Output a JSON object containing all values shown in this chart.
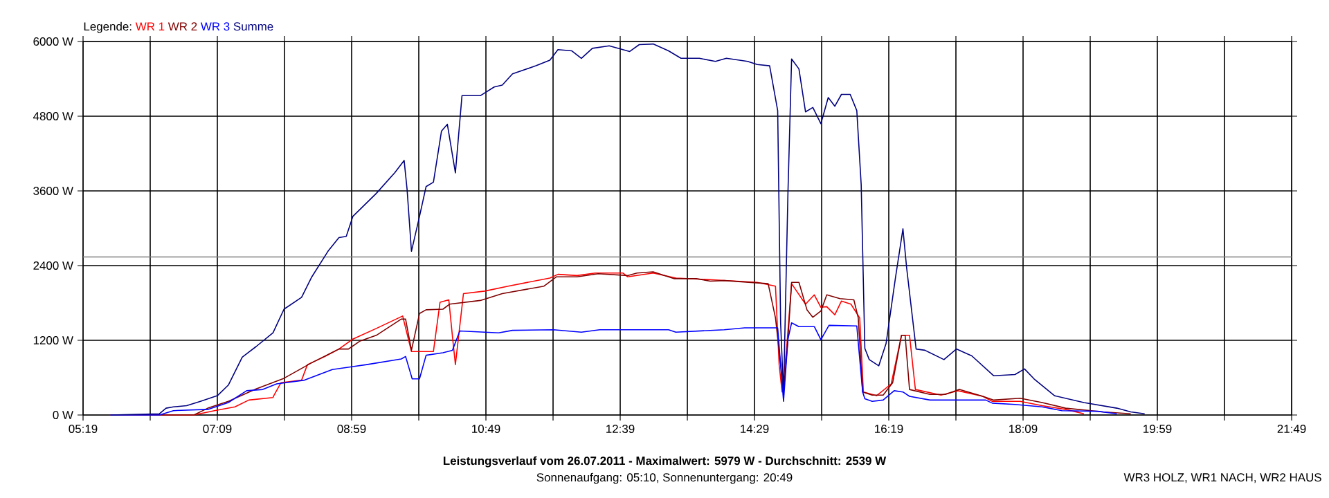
{
  "chart_data": {
    "type": "line",
    "title": "Leistungsverlauf vom 26.07.2011 - Maximalwert: 5979 W - Durchschnitt: 2539 W",
    "subtitle": "Sonnenaufgang: 05:10, Sonnenuntergang: 20:49",
    "annotations": [
      "WR3 HOLZ, WR1 NACH, WR2 HAUS"
    ],
    "legend_title": "Legende:",
    "legend": "top left",
    "grid": true,
    "xlim": [
      5.3167,
      21.8167
    ],
    "ylim": [
      0,
      6000
    ],
    "xticks": [
      {
        "value": 5.3167,
        "label": "05:19"
      },
      {
        "value": 6.2333,
        "label": null
      },
      {
        "value": 7.15,
        "label": "07:09"
      },
      {
        "value": 8.0667,
        "label": null
      },
      {
        "value": 8.9833,
        "label": "08:59"
      },
      {
        "value": 9.9,
        "label": null
      },
      {
        "value": 10.8167,
        "label": "10:49"
      },
      {
        "value": 11.7333,
        "label": null
      },
      {
        "value": 12.65,
        "label": "12:39"
      },
      {
        "value": 13.5667,
        "label": null
      },
      {
        "value": 14.4833,
        "label": "14:29"
      },
      {
        "value": 15.4,
        "label": null
      },
      {
        "value": 16.3167,
        "label": "16:19"
      },
      {
        "value": 17.2333,
        "label": null
      },
      {
        "value": 18.15,
        "label": "18:09"
      },
      {
        "value": 19.0667,
        "label": null
      },
      {
        "value": 19.9833,
        "label": "19:59"
      },
      {
        "value": 20.9,
        "label": null
      },
      {
        "value": 21.8167,
        "label": "21:49"
      }
    ],
    "yticks": [
      {
        "value": 0,
        "label": "0 W"
      },
      {
        "value": 1200,
        "label": "1200 W"
      },
      {
        "value": 2400,
        "label": "2400 W"
      },
      {
        "value": 3600,
        "label": "3600 W"
      },
      {
        "value": 4800,
        "label": "4800 W"
      },
      {
        "value": 6000,
        "label": "6000 W"
      }
    ],
    "ref_lines": [
      {
        "axis": "y",
        "value": 2539,
        "color": "#808080"
      }
    ],
    "series": [
      {
        "name": "WR 1",
        "color": "#ff0000",
        "x": [
          5.69,
          6.83,
          7.11,
          7.39,
          7.58,
          7.91,
          7.92,
          8.02,
          8.3,
          8.38,
          8.62,
          8.81,
          9.0,
          9.32,
          9.68,
          9.8,
          10.1,
          10.19,
          10.31,
          10.36,
          10.4,
          10.51,
          10.8,
          11.12,
          11.69,
          11.8,
          12.06,
          12.31,
          12.69,
          12.75,
          13.1,
          13.41,
          13.95,
          14.52,
          14.77,
          14.82,
          14.86,
          14.92,
          14.99,
          15.18,
          15.3,
          15.39,
          15.47,
          15.58,
          15.67,
          15.8,
          15.92,
          15.97,
          16.15,
          16.35,
          16.49,
          16.6,
          16.68,
          17.03,
          17.26,
          17.6,
          17.73,
          18.11,
          18.41,
          18.73,
          18.98
        ],
        "values": [
          0,
          0,
          70,
          130,
          240,
          280,
          310,
          520,
          560,
          810,
          940,
          1060,
          1220,
          1390,
          1590,
          1020,
          1020,
          1810,
          1850,
          1260,
          810,
          1950,
          1990,
          2070,
          2200,
          2260,
          2240,
          2280,
          2280,
          2220,
          2280,
          2200,
          2170,
          2130,
          2070,
          810,
          370,
          1040,
          2110,
          1780,
          1930,
          1730,
          1740,
          1610,
          1830,
          1780,
          1560,
          370,
          310,
          500,
          1280,
          1280,
          410,
          320,
          390,
          300,
          220,
          220,
          150,
          90,
          20
        ]
      },
      {
        "name": "WR 2",
        "color": "#800000",
        "x": [
          5.69,
          6.83,
          7.02,
          7.3,
          7.68,
          8.06,
          8.44,
          8.81,
          8.94,
          9.1,
          9.32,
          9.66,
          9.72,
          9.8,
          9.91,
          10.0,
          10.23,
          10.32,
          10.74,
          11.04,
          11.61,
          11.78,
          12.06,
          12.35,
          12.75,
          12.88,
          13.1,
          13.39,
          13.69,
          13.88,
          14.07,
          14.67,
          14.77,
          14.84,
          14.88,
          14.94,
          14.99,
          15.09,
          15.2,
          15.28,
          15.39,
          15.47,
          15.65,
          15.84,
          15.9,
          15.96,
          16.09,
          16.24,
          16.37,
          16.49,
          16.54,
          16.6,
          16.88,
          17.09,
          17.28,
          17.6,
          17.75,
          18.11,
          18.41,
          18.73,
          19.24,
          19.62
        ],
        "values": [
          0,
          0,
          110,
          220,
          420,
          590,
          840,
          1060,
          1060,
          1190,
          1280,
          1540,
          1540,
          1040,
          1630,
          1690,
          1700,
          1780,
          1840,
          1950,
          2070,
          2220,
          2220,
          2270,
          2240,
          2280,
          2300,
          2190,
          2190,
          2150,
          2160,
          2110,
          1560,
          810,
          370,
          1220,
          2130,
          2130,
          1690,
          1570,
          1670,
          1930,
          1870,
          1850,
          1560,
          370,
          320,
          320,
          520,
          1280,
          1280,
          410,
          330,
          330,
          410,
          300,
          240,
          270,
          200,
          110,
          50,
          20
        ]
      },
      {
        "name": "WR 3",
        "color": "#0000ff",
        "x": [
          5.69,
          6.36,
          6.55,
          7.02,
          7.3,
          7.55,
          7.77,
          7.96,
          8.34,
          8.72,
          9.19,
          9.66,
          9.72,
          9.81,
          9.91,
          10.0,
          10.23,
          10.36,
          10.46,
          10.99,
          11.18,
          11.74,
          12.12,
          12.37,
          13.31,
          13.41,
          14.07,
          14.35,
          14.8,
          14.84,
          14.88,
          14.94,
          14.99,
          15.09,
          15.3,
          15.39,
          15.5,
          15.88,
          15.96,
          15.99,
          16.09,
          16.24,
          16.39,
          16.51,
          16.6,
          16.88,
          17.64,
          17.73,
          18.04,
          18.41,
          18.68,
          19.17,
          19.43
        ],
        "values": [
          0,
          0,
          70,
          90,
          200,
          390,
          410,
          500,
          560,
          730,
          810,
          900,
          940,
          580,
          580,
          960,
          1000,
          1040,
          1350,
          1320,
          1360,
          1370,
          1330,
          1370,
          1370,
          1330,
          1370,
          1400,
          1400,
          810,
          220,
          1220,
          1480,
          1420,
          1420,
          1210,
          1440,
          1430,
          370,
          260,
          220,
          240,
          390,
          370,
          300,
          240,
          240,
          190,
          170,
          130,
          70,
          60,
          20
        ]
      },
      {
        "name": "Summe",
        "color": "#000080",
        "x": [
          5.69,
          6.36,
          6.45,
          6.55,
          6.73,
          6.92,
          7.15,
          7.3,
          7.49,
          7.68,
          7.91,
          8.06,
          8.3,
          8.44,
          8.66,
          8.81,
          8.91,
          9.0,
          9.32,
          9.57,
          9.7,
          9.74,
          9.8,
          9.91,
          10.0,
          10.1,
          10.21,
          10.29,
          10.4,
          10.49,
          10.74,
          10.93,
          11.04,
          11.18,
          11.5,
          11.69,
          11.8,
          11.99,
          12.12,
          12.27,
          12.5,
          12.78,
          12.91,
          13.1,
          13.31,
          13.48,
          13.73,
          13.95,
          14.1,
          14.39,
          14.52,
          14.69,
          14.8,
          14.84,
          14.88,
          14.94,
          14.99,
          15.09,
          15.18,
          15.28,
          15.39,
          15.49,
          15.58,
          15.67,
          15.79,
          15.88,
          15.94,
          15.99,
          16.05,
          16.18,
          16.28,
          16.41,
          16.51,
          16.56,
          16.69,
          16.81,
          17.07,
          17.24,
          17.45,
          17.75,
          18.04,
          18.17,
          18.3,
          18.58,
          18.98,
          19.43,
          19.62,
          19.81
        ],
        "values": [
          0,
          20,
          110,
          130,
          150,
          220,
          310,
          480,
          930,
          1100,
          1320,
          1700,
          1890,
          2220,
          2630,
          2850,
          2870,
          3190,
          3560,
          3890,
          4090,
          3630,
          2630,
          3190,
          3670,
          3740,
          4560,
          4670,
          3890,
          5130,
          5130,
          5270,
          5300,
          5480,
          5610,
          5700,
          5870,
          5850,
          5730,
          5890,
          5930,
          5840,
          5950,
          5960,
          5850,
          5730,
          5730,
          5680,
          5730,
          5680,
          5630,
          5610,
          4890,
          1480,
          330,
          3560,
          5720,
          5560,
          4870,
          4940,
          4680,
          5100,
          4960,
          5150,
          5150,
          4890,
          3700,
          1070,
          890,
          790,
          1150,
          2220,
          2990,
          2370,
          1060,
          1040,
          890,
          1060,
          950,
          630,
          650,
          740,
          580,
          310,
          200,
          110,
          50,
          20
        ]
      }
    ]
  }
}
